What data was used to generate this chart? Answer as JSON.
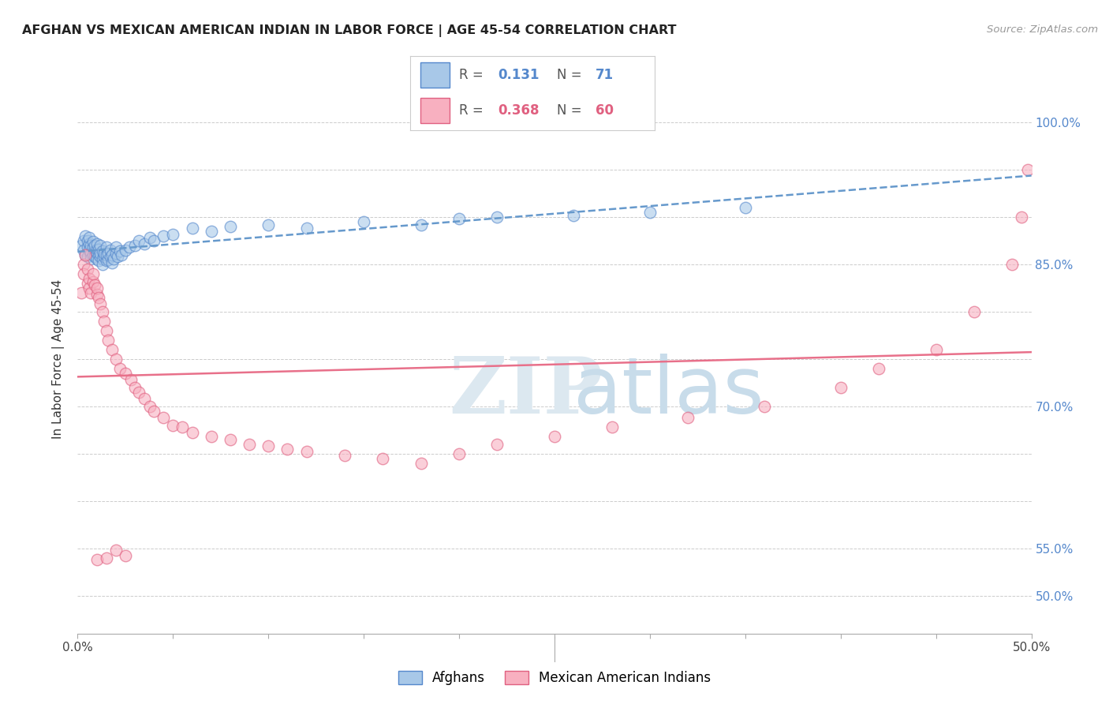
{
  "title": "AFGHAN VS MEXICAN AMERICAN INDIAN IN LABOR FORCE | AGE 45-54 CORRELATION CHART",
  "source": "Source: ZipAtlas.com",
  "ylabel": "In Labor Force | Age 45-54",
  "xlim": [
    0.0,
    0.5
  ],
  "ylim": [
    0.46,
    1.04
  ],
  "grid_color": "#cccccc",
  "background_color": "#ffffff",
  "legend_R1": "0.131",
  "legend_N1": "71",
  "legend_R2": "0.368",
  "legend_N2": "60",
  "blue_fill": "#a8c8e8",
  "blue_edge": "#5588cc",
  "pink_fill": "#f8b0c0",
  "pink_edge": "#e06080",
  "blue_line": "#6699cc",
  "pink_line": "#e8708a",
  "legend_label1": "Afghans",
  "legend_label2": "Mexican American Indians",
  "afghans_x": [
    0.002,
    0.003,
    0.003,
    0.004,
    0.004,
    0.005,
    0.005,
    0.005,
    0.006,
    0.006,
    0.006,
    0.007,
    0.007,
    0.007,
    0.008,
    0.008,
    0.008,
    0.009,
    0.009,
    0.009,
    0.01,
    0.01,
    0.01,
    0.01,
    0.011,
    0.011,
    0.011,
    0.012,
    0.012,
    0.012,
    0.013,
    0.013,
    0.013,
    0.014,
    0.014,
    0.015,
    0.015,
    0.015,
    0.016,
    0.016,
    0.017,
    0.017,
    0.018,
    0.018,
    0.019,
    0.02,
    0.02,
    0.021,
    0.022,
    0.023,
    0.025,
    0.027,
    0.03,
    0.032,
    0.035,
    0.038,
    0.04,
    0.045,
    0.05,
    0.06,
    0.07,
    0.08,
    0.1,
    0.12,
    0.15,
    0.18,
    0.2,
    0.22,
    0.26,
    0.3,
    0.35
  ],
  "afghans_y": [
    0.87,
    0.875,
    0.865,
    0.88,
    0.86,
    0.875,
    0.868,
    0.858,
    0.872,
    0.865,
    0.878,
    0.862,
    0.87,
    0.856,
    0.868,
    0.86,
    0.874,
    0.864,
    0.858,
    0.87,
    0.862,
    0.866,
    0.856,
    0.872,
    0.86,
    0.854,
    0.866,
    0.858,
    0.862,
    0.87,
    0.856,
    0.864,
    0.85,
    0.858,
    0.862,
    0.854,
    0.86,
    0.868,
    0.855,
    0.862,
    0.858,
    0.865,
    0.852,
    0.86,
    0.856,
    0.862,
    0.868,
    0.858,
    0.864,
    0.86,
    0.865,
    0.868,
    0.87,
    0.875,
    0.872,
    0.878,
    0.875,
    0.88,
    0.882,
    0.888,
    0.885,
    0.89,
    0.892,
    0.888,
    0.895,
    0.892,
    0.898,
    0.9,
    0.902,
    0.905,
    0.91
  ],
  "mexicanai_x": [
    0.002,
    0.003,
    0.003,
    0.004,
    0.005,
    0.005,
    0.006,
    0.006,
    0.007,
    0.008,
    0.008,
    0.009,
    0.01,
    0.01,
    0.011,
    0.012,
    0.013,
    0.014,
    0.015,
    0.016,
    0.018,
    0.02,
    0.022,
    0.025,
    0.028,
    0.03,
    0.032,
    0.035,
    0.038,
    0.04,
    0.045,
    0.05,
    0.055,
    0.06,
    0.07,
    0.08,
    0.09,
    0.1,
    0.11,
    0.12,
    0.14,
    0.16,
    0.18,
    0.2,
    0.22,
    0.25,
    0.28,
    0.32,
    0.36,
    0.4,
    0.42,
    0.45,
    0.47,
    0.49,
    0.495,
    0.498,
    0.01,
    0.015,
    0.02,
    0.025
  ],
  "mexicanai_y": [
    0.82,
    0.85,
    0.84,
    0.86,
    0.83,
    0.845,
    0.835,
    0.825,
    0.82,
    0.832,
    0.84,
    0.828,
    0.818,
    0.825,
    0.815,
    0.808,
    0.8,
    0.79,
    0.78,
    0.77,
    0.76,
    0.75,
    0.74,
    0.735,
    0.728,
    0.72,
    0.715,
    0.708,
    0.7,
    0.695,
    0.688,
    0.68,
    0.678,
    0.672,
    0.668,
    0.665,
    0.66,
    0.658,
    0.655,
    0.652,
    0.648,
    0.645,
    0.64,
    0.65,
    0.66,
    0.668,
    0.678,
    0.688,
    0.7,
    0.72,
    0.74,
    0.76,
    0.8,
    0.85,
    0.9,
    0.95,
    0.538,
    0.54,
    0.548,
    0.542
  ]
}
